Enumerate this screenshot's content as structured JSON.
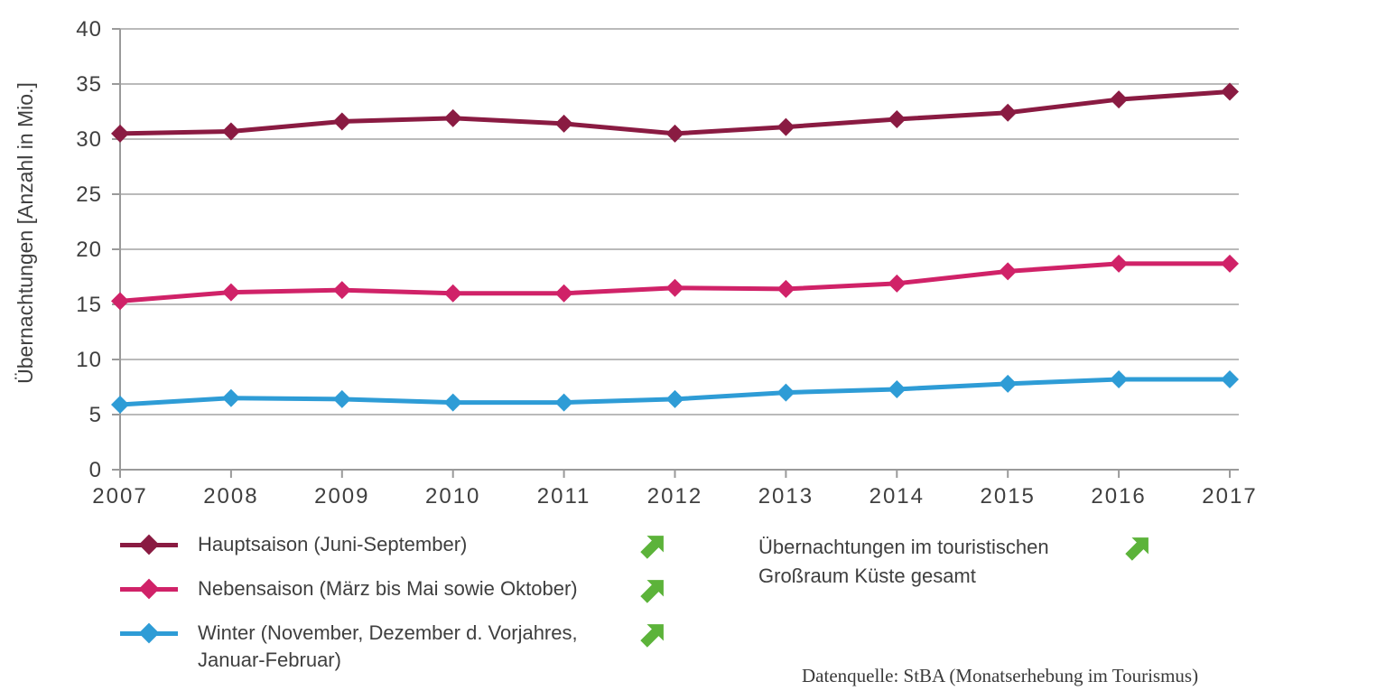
{
  "colors": {
    "hauptsaison": "#8a1b42",
    "nebensaison": "#d02268",
    "winter": "#2e9cd6",
    "arrow_green": "#5cb33a",
    "grid": "#a3a3a3",
    "axis": "#9a9a9a",
    "text": "#3f3f3f"
  },
  "chart_data": {
    "type": "line",
    "x": [
      2007,
      2008,
      2009,
      2010,
      2011,
      2012,
      2013,
      2014,
      2015,
      2016,
      2017
    ],
    "ylabel": "Übernachtungen [Anzahl in Mio.]",
    "xlabel": "",
    "ylim": [
      0,
      40
    ],
    "ytick_step": 5,
    "yticks": [
      0,
      5,
      10,
      15,
      20,
      25,
      30,
      35,
      40
    ],
    "grid": true,
    "marker": "diamond",
    "legend_position": "bottom-left",
    "series": [
      {
        "name": "Hauptsaison (Juni-September)",
        "color_key": "hauptsaison",
        "values": [
          30.5,
          30.7,
          31.6,
          31.9,
          31.4,
          30.5,
          31.1,
          31.8,
          32.4,
          33.6,
          34.3
        ]
      },
      {
        "name": "Nebensaison (März bis Mai sowie Oktober)",
        "color_key": "nebensaison",
        "values": [
          15.3,
          16.1,
          16.3,
          16.0,
          16.0,
          16.5,
          16.4,
          16.9,
          18.0,
          18.7,
          18.7
        ]
      },
      {
        "name": "Winter (November, Dezember d. Vorjahres, Januar-Februar)",
        "color_key": "winter",
        "values": [
          5.9,
          6.5,
          6.4,
          6.1,
          6.1,
          6.4,
          7.0,
          7.3,
          7.8,
          8.2,
          8.2
        ]
      }
    ]
  },
  "annotation": {
    "text": "Übernachtungen im touristischen Großraum Küste gesamt",
    "trend_icon": "trend-up-arrow"
  },
  "source": "Datenquelle: StBA (Monatserhebung im Tourismus)"
}
